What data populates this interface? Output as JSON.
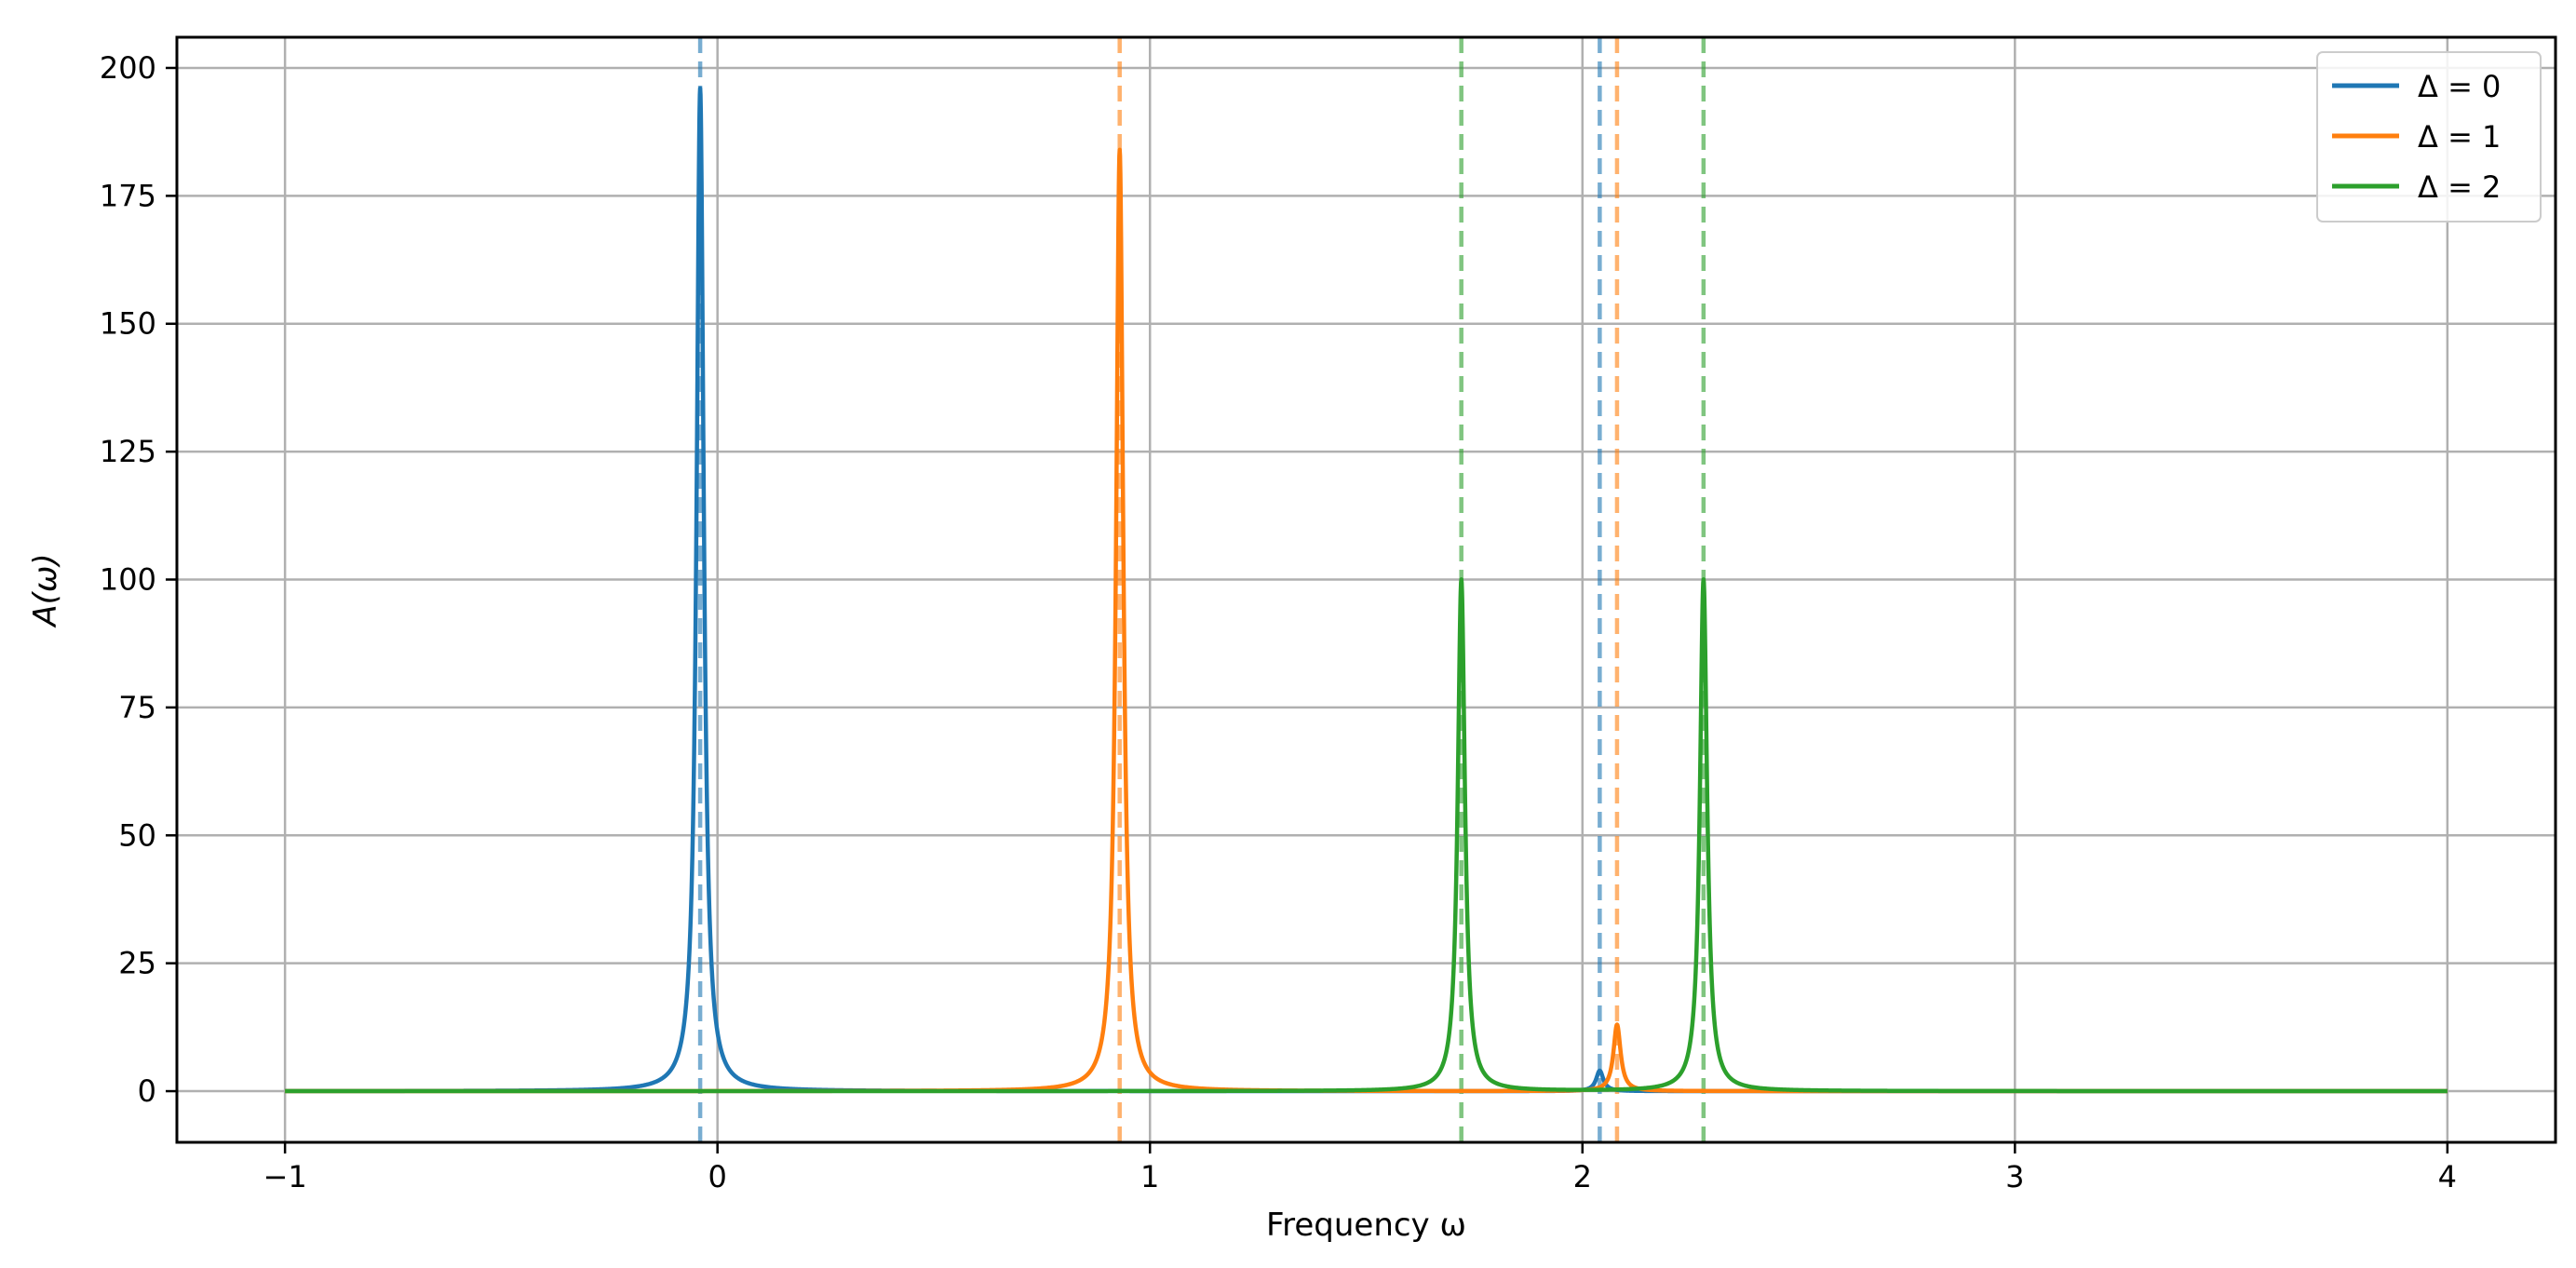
{
  "chart_data": {
    "type": "line",
    "title": "",
    "xlabel": "Frequency ω",
    "ylabel": "A(ω)",
    "xlim": [
      -1.25,
      4.25
    ],
    "ylim": [
      -10,
      206
    ],
    "grid": true,
    "legend_position": "top-right",
    "xticks": [
      -1,
      0,
      1,
      2,
      3,
      4
    ],
    "xtick_labels": [
      "−1",
      "0",
      "1",
      "2",
      "3",
      "4"
    ],
    "yticks": [
      0,
      25,
      50,
      75,
      100,
      125,
      150,
      175,
      200
    ],
    "ytick_labels": [
      "0",
      "25",
      "50",
      "75",
      "100",
      "125",
      "150",
      "175",
      "200"
    ],
    "x_range": [
      -1,
      4
    ],
    "series": [
      {
        "name": "Δ = 0",
        "color": "#1f77b4",
        "peaks": [
          {
            "center": -0.04,
            "height": 196
          },
          {
            "center": 2.04,
            "height": 4
          }
        ]
      },
      {
        "name": "Δ = 1",
        "color": "#ff7f0e",
        "peaks": [
          {
            "center": 0.93,
            "height": 184
          },
          {
            "center": 2.08,
            "height": 13
          }
        ]
      },
      {
        "name": "Δ = 2",
        "color": "#2ca02c",
        "peaks": [
          {
            "center": 1.72,
            "height": 100
          },
          {
            "center": 2.28,
            "height": 100
          }
        ]
      }
    ],
    "reference_lines": [
      {
        "x": -0.04,
        "color": "#1f77b4"
      },
      {
        "x": 2.04,
        "color": "#1f77b4"
      },
      {
        "x": 0.93,
        "color": "#ff7f0e"
      },
      {
        "x": 2.08,
        "color": "#ff7f0e"
      },
      {
        "x": 1.72,
        "color": "#2ca02c"
      },
      {
        "x": 2.28,
        "color": "#2ca02c"
      }
    ]
  }
}
